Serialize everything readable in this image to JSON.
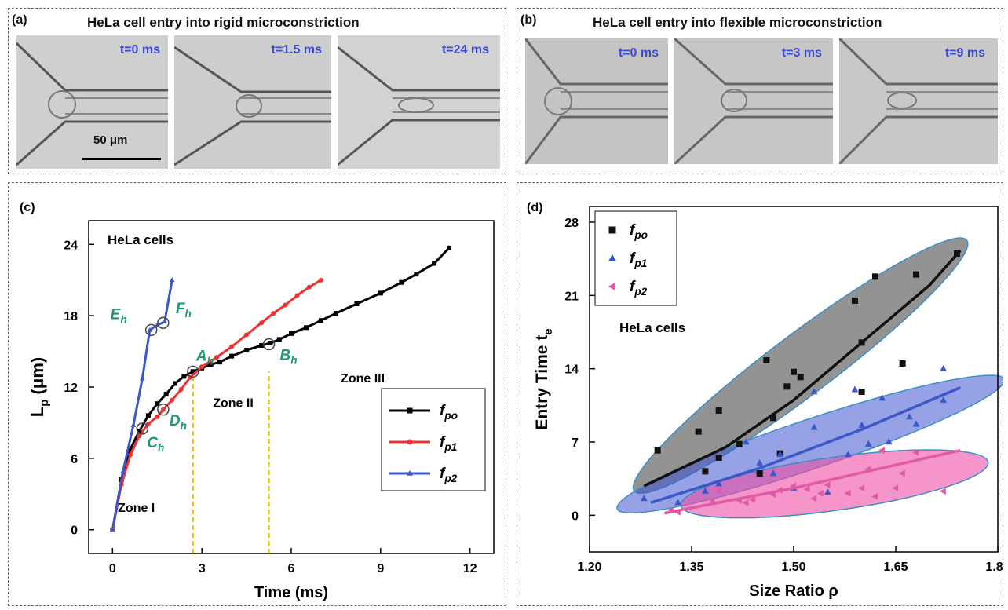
{
  "panel_a": {
    "label": "(a)",
    "title": "HeLa cell entry into rigid microconstriction",
    "frames": [
      "t=0 ms",
      "t=1.5 ms",
      "t=24 ms"
    ],
    "scale_bar": "50 μm"
  },
  "panel_b": {
    "label": "(b)",
    "title": "HeLa cell entry into flexible microconstriction",
    "frames": [
      "t=0 ms",
      "t=3 ms",
      "t=9 ms"
    ]
  },
  "chart_data": [
    {
      "panel": "(c)",
      "type": "line",
      "xlabel": "Time (ms)",
      "ylabel_main": "L",
      "ylabel_sub": "p",
      "ylabel_unit": " (μm)",
      "xlim": [
        -0.8,
        12.8
      ],
      "ylim": [
        -2,
        26
      ],
      "xticks": [
        0,
        3,
        6,
        9,
        12
      ],
      "yticks": [
        0,
        6,
        12,
        18,
        24
      ],
      "annotation": "HeLa cells",
      "zones": [
        "Zone I",
        "Zone II",
        "Zone III"
      ],
      "series": [
        {
          "name_main": "f",
          "name_sub": "po",
          "color": "#000000",
          "marker": "square",
          "x": [
            0,
            0.3,
            0.6,
            0.9,
            1.2,
            1.5,
            1.8,
            2.1,
            2.4,
            2.7,
            3.0,
            3.3,
            3.6,
            4.0,
            4.5,
            5.0,
            5.3,
            5.6,
            6.0,
            6.5,
            7.0,
            7.5,
            8.2,
            9.0,
            9.7,
            10.2,
            10.8,
            11.3
          ],
          "y": [
            0,
            4.2,
            6.8,
            8.3,
            9.6,
            10.6,
            11.4,
            12.3,
            12.9,
            13.3,
            13.6,
            13.9,
            14.1,
            14.6,
            15.1,
            15.5,
            15.7,
            16.0,
            16.5,
            17.0,
            17.6,
            18.2,
            19.0,
            19.9,
            20.8,
            21.5,
            22.4,
            23.7
          ]
        },
        {
          "name_main": "f",
          "name_sub": "p1",
          "color": "#ee3333",
          "marker": "circle",
          "x": [
            0,
            0.3,
            0.6,
            0.9,
            1.2,
            1.5,
            1.7,
            2.0,
            2.3,
            2.6,
            3.0,
            3.5,
            4.0,
            4.5,
            5.0,
            5.4,
            5.8,
            6.2,
            6.6,
            7.0
          ],
          "y": [
            0,
            3.8,
            6.3,
            7.9,
            8.9,
            9.5,
            10.1,
            10.9,
            11.8,
            12.8,
            13.7,
            14.5,
            15.4,
            16.4,
            17.4,
            18.2,
            18.9,
            19.7,
            20.4,
            21.0
          ]
        },
        {
          "name_main": "f",
          "name_sub": "p2",
          "color": "#3b57c8",
          "marker": "triangle",
          "x": [
            0,
            0.35,
            0.7,
            1.0,
            1.25,
            1.5,
            1.75,
            2.0
          ],
          "y": [
            0,
            4.9,
            8.8,
            12.7,
            16.8,
            17.2,
            17.5,
            21.0
          ]
        }
      ],
      "key_points": [
        {
          "label_main": "A",
          "label_sub": "h",
          "x": 2.7,
          "y": 13.3
        },
        {
          "label_main": "B",
          "label_sub": "h",
          "x": 5.25,
          "y": 15.6
        },
        {
          "label_main": "C",
          "label_sub": "h",
          "x": 1.0,
          "y": 8.5
        },
        {
          "label_main": "D",
          "label_sub": "h",
          "x": 1.7,
          "y": 10.1
        },
        {
          "label_main": "E",
          "label_sub": "h",
          "x": 1.3,
          "y": 16.8
        },
        {
          "label_main": "F",
          "label_sub": "h",
          "x": 1.7,
          "y": 17.4
        }
      ],
      "dashed_lines_x": [
        2.7,
        5.25
      ],
      "dashed_color": "#f5b800",
      "key_color": "#1a9a73"
    },
    {
      "panel": "(d)",
      "type": "scatter",
      "xlabel": "Size Ratio ρ",
      "ylabel_main": "Entry Time t",
      "ylabel_sub": "e",
      "xlim": [
        1.2,
        1.8
      ],
      "ylim": [
        -3.5,
        29.5
      ],
      "xticks": [
        "1.20",
        "1.35",
        "1.50",
        "1.65",
        "1.80"
      ],
      "yticks": [
        0,
        7,
        14,
        21,
        28
      ],
      "annotation": "HeLa cells",
      "series": [
        {
          "name_main": "f",
          "name_sub": "po",
          "color": "#111111",
          "marker": "square",
          "x": [
            1.3,
            1.36,
            1.37,
            1.39,
            1.39,
            1.42,
            1.45,
            1.46,
            1.47,
            1.48,
            1.49,
            1.5,
            1.51,
            1.59,
            1.6,
            1.6,
            1.62,
            1.66,
            1.68,
            1.74
          ],
          "y": [
            6.2,
            8.0,
            4.2,
            5.5,
            10.0,
            6.8,
            4.0,
            14.8,
            9.3,
            5.9,
            12.3,
            13.7,
            13.2,
            20.5,
            11.8,
            16.5,
            22.8,
            14.5,
            23.0,
            25.0
          ],
          "fit": [
            [
              1.28,
              2.8
            ],
            [
              1.4,
              6.5
            ],
            [
              1.5,
              11.0
            ],
            [
              1.6,
              16.5
            ],
            [
              1.7,
              22.0
            ],
            [
              1.745,
              25.3
            ]
          ]
        },
        {
          "name_main": "f",
          "name_sub": "p1",
          "color": "#3b57c8",
          "marker": "triangle",
          "x": [
            1.28,
            1.33,
            1.37,
            1.39,
            1.43,
            1.45,
            1.47,
            1.48,
            1.5,
            1.53,
            1.53,
            1.55,
            1.58,
            1.59,
            1.6,
            1.61,
            1.63,
            1.64,
            1.67,
            1.68,
            1.72,
            1.72
          ],
          "y": [
            1.6,
            1.2,
            2.3,
            3.0,
            7.0,
            5.0,
            4.0,
            5.8,
            2.6,
            11.8,
            8.4,
            2.2,
            5.8,
            12.0,
            8.6,
            6.8,
            11.2,
            7.0,
            9.4,
            8.7,
            14.0,
            11.0
          ],
          "fit": [
            [
              1.29,
              1.2
            ],
            [
              1.45,
              4.5
            ],
            [
              1.6,
              8.2
            ],
            [
              1.745,
              12.2
            ]
          ]
        },
        {
          "name_main": "f",
          "name_sub": "p2",
          "color": "#e05aa6",
          "marker": "left-triangle",
          "x": [
            1.32,
            1.33,
            1.38,
            1.39,
            1.42,
            1.43,
            1.44,
            1.47,
            1.48,
            1.5,
            1.52,
            1.53,
            1.54,
            1.55,
            1.58,
            1.6,
            1.61,
            1.62,
            1.63,
            1.65,
            1.66,
            1.68,
            1.72
          ],
          "y": [
            0.5,
            0.3,
            1.3,
            2.3,
            1.4,
            1.2,
            1.5,
            2.0,
            2.4,
            2.8,
            2.5,
            1.6,
            2.1,
            2.9,
            2.1,
            2.6,
            4.4,
            1.8,
            6.2,
            2.6,
            4.0,
            6.0,
            2.3
          ],
          "fit": [
            [
              1.31,
              0.2
            ],
            [
              1.5,
              2.6
            ],
            [
              1.745,
              6.2
            ]
          ]
        }
      ],
      "ellipses": [
        {
          "cx": 1.51,
          "cy": 14.3,
          "rx_frac": 0.51,
          "ry_frac": 0.075,
          "rot": -37,
          "fill": "#4b4b4b",
          "opacity": 0.6
        },
        {
          "cx": 1.525,
          "cy": 6.8,
          "rx_frac": 0.5,
          "ry_frac": 0.06,
          "rot": -18.5,
          "fill": "#3f56d0",
          "opacity": 0.55
        },
        {
          "cx": 1.56,
          "cy": 3.0,
          "rx_frac": 0.38,
          "ry_frac": 0.065,
          "rot": -8,
          "fill": "#ee4fa5",
          "opacity": 0.6
        }
      ]
    }
  ]
}
